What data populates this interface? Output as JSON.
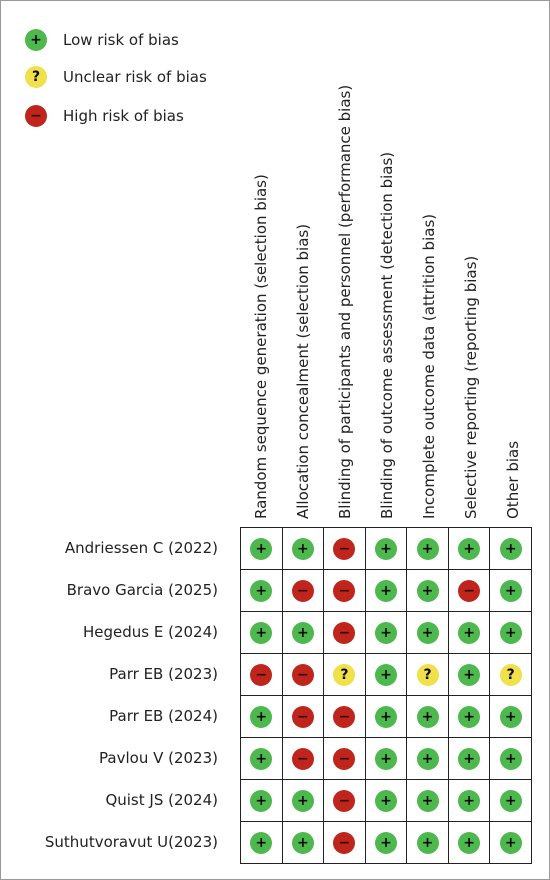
{
  "legend": {
    "low": "Low risk of bias",
    "unclear": "Unclear risk of bias",
    "high": "High risk of bias"
  },
  "symbols": {
    "low": "+",
    "unclear": "?",
    "high": "−"
  },
  "colors": {
    "low": "#4db84d",
    "unclear": "#f0e04a",
    "high": "#c0251d"
  },
  "chart_data": {
    "type": "table",
    "columns": [
      "Random sequence generation (selection bias)",
      "Allocation concealment (selection bias)",
      "Blinding of participants and personnel (performance bias)",
      "Blinding of outcome assessment (detection bias)",
      "Incomplete outcome data (attrition bias)",
      "Selective reporting (reporting bias)",
      "Other bias"
    ],
    "rows": [
      {
        "study": "Andriessen C (2022)",
        "ratings": [
          "low",
          "low",
          "high",
          "low",
          "low",
          "low",
          "low"
        ]
      },
      {
        "study": "Bravo Garcia (2025)",
        "ratings": [
          "low",
          "high",
          "high",
          "low",
          "low",
          "high",
          "low"
        ]
      },
      {
        "study": "Hegedus E (2024)",
        "ratings": [
          "low",
          "low",
          "high",
          "low",
          "low",
          "low",
          "low"
        ]
      },
      {
        "study": "Parr EB (2023)",
        "ratings": [
          "high",
          "high",
          "unclear",
          "low",
          "unclear",
          "low",
          "unclear"
        ]
      },
      {
        "study": "Parr EB (2024)",
        "ratings": [
          "low",
          "high",
          "high",
          "low",
          "low",
          "low",
          "low"
        ]
      },
      {
        "study": "Pavlou V (2023)",
        "ratings": [
          "low",
          "high",
          "high",
          "low",
          "low",
          "low",
          "low"
        ]
      },
      {
        "study": "Quist JS (2024)",
        "ratings": [
          "low",
          "low",
          "high",
          "low",
          "low",
          "low",
          "low"
        ]
      },
      {
        "study": "Suthutvoravut U(2023)",
        "ratings": [
          "low",
          "low",
          "high",
          "low",
          "low",
          "low",
          "low"
        ]
      }
    ]
  }
}
